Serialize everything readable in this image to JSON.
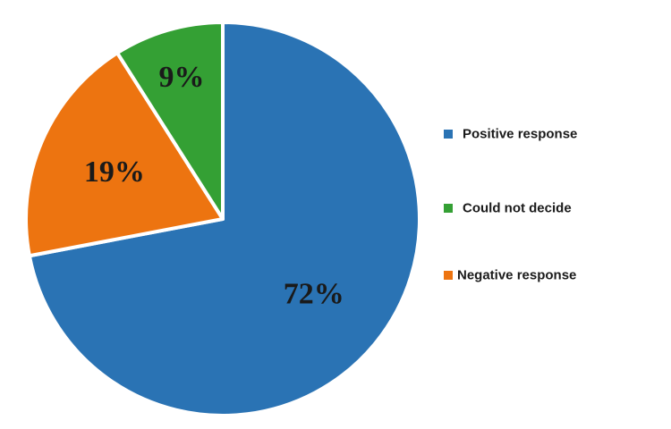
{
  "chart_data": {
    "type": "pie",
    "slices": [
      {
        "label": "Positive response",
        "value": 72,
        "display": "72%",
        "color": "#2a73b4"
      },
      {
        "label": "Negative response",
        "value": 19,
        "display": "19%",
        "color": "#ed7410"
      },
      {
        "label": "Could not decide",
        "value": 9,
        "display": "9%",
        "color": "#34a034"
      }
    ],
    "legend": {
      "placement": "right",
      "order": [
        "Positive response",
        "Could not decide",
        "Negative response"
      ]
    },
    "slice_border_color": "#ffffff"
  }
}
